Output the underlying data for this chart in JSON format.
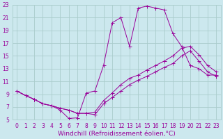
{
  "bg_color": "#cce8ee",
  "grid_color": "#aacccc",
  "line_color": "#990099",
  "xlim": [
    -0.5,
    23.5
  ],
  "ylim": [
    5,
    23
  ],
  "xticks": [
    0,
    1,
    2,
    3,
    4,
    5,
    6,
    7,
    8,
    9,
    10,
    11,
    12,
    13,
    14,
    15,
    16,
    17,
    18,
    19,
    20,
    21,
    22,
    23
  ],
  "yticks": [
    5,
    7,
    9,
    11,
    13,
    15,
    17,
    19,
    21,
    23
  ],
  "xlabel": "Windchill (Refroidissement éolien,°C)",
  "xlabel_fontsize": 6.5,
  "tick_fontsize": 5.5,
  "line1_x": [
    0,
    1,
    2,
    3,
    4,
    5,
    6,
    7,
    8,
    9,
    10,
    11,
    12,
    13,
    14,
    15,
    16,
    17,
    18,
    19,
    20,
    21,
    22,
    23
  ],
  "line1_y": [
    9.5,
    8.8,
    8.2,
    7.5,
    7.2,
    6.5,
    5.2,
    5.3,
    9.2,
    9.5,
    13.5,
    20.2,
    21.0,
    16.5,
    22.5,
    22.8,
    22.5,
    22.2,
    18.5,
    16.5,
    13.5,
    13.0,
    12.0,
    12.0
  ],
  "line2_x": [
    0,
    1,
    2,
    3,
    4,
    5,
    6,
    7,
    8,
    9,
    10,
    11,
    12,
    13,
    14,
    15,
    16,
    17,
    18,
    19,
    20,
    21,
    22,
    23
  ],
  "line2_y": [
    9.5,
    8.8,
    8.2,
    7.5,
    7.2,
    6.8,
    6.5,
    6.0,
    6.0,
    6.2,
    8.0,
    9.2,
    10.5,
    11.5,
    12.0,
    12.8,
    13.5,
    14.2,
    15.0,
    16.2,
    16.5,
    15.2,
    13.5,
    12.5
  ],
  "line3_x": [
    0,
    1,
    2,
    3,
    4,
    5,
    6,
    7,
    8,
    9,
    10,
    11,
    12,
    13,
    14,
    15,
    16,
    17,
    18,
    19,
    20,
    21,
    22,
    23
  ],
  "line3_y": [
    9.5,
    8.8,
    8.2,
    7.5,
    7.2,
    6.8,
    6.5,
    6.0,
    6.0,
    5.8,
    7.5,
    8.5,
    9.5,
    10.5,
    11.2,
    11.8,
    12.5,
    13.2,
    13.8,
    15.0,
    15.8,
    14.2,
    12.5,
    11.8
  ]
}
